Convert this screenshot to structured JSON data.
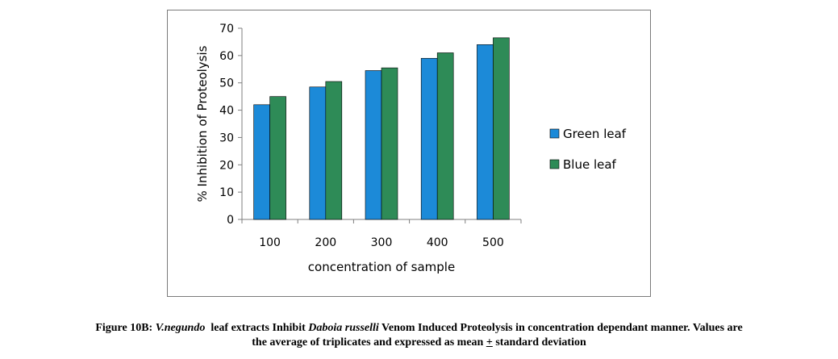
{
  "chart_data": {
    "type": "bar",
    "title": "",
    "xlabel": "concentration of sample",
    "ylabel": "% Inhibition of Proteolysis",
    "categories": [
      "100",
      "200",
      "300",
      "400",
      "500"
    ],
    "ylim": [
      0,
      70
    ],
    "yticks": [
      0,
      10,
      20,
      30,
      40,
      50,
      60,
      70
    ],
    "grid": false,
    "legend_position": "right",
    "series": [
      {
        "name": "Green leaf",
        "color": "#1c8ad8",
        "values": [
          42,
          48.5,
          54.5,
          59,
          64
        ]
      },
      {
        "name": "Blue leaf",
        "color": "#2e8b57",
        "values": [
          45,
          50.5,
          55.5,
          61,
          66.5
        ]
      }
    ]
  },
  "caption": {
    "label": "Figure 10B: ",
    "species": "V.negundo",
    "part1": "  leaf extracts Inhibit ",
    "venom": "Daboia russelli",
    "part2": " Venom Induced Proteolysis in concentration dependant manner. Values are",
    "line2a": "the average of triplicates and expressed as mean ",
    "pm": "+",
    "line2b": " standard deviation"
  }
}
